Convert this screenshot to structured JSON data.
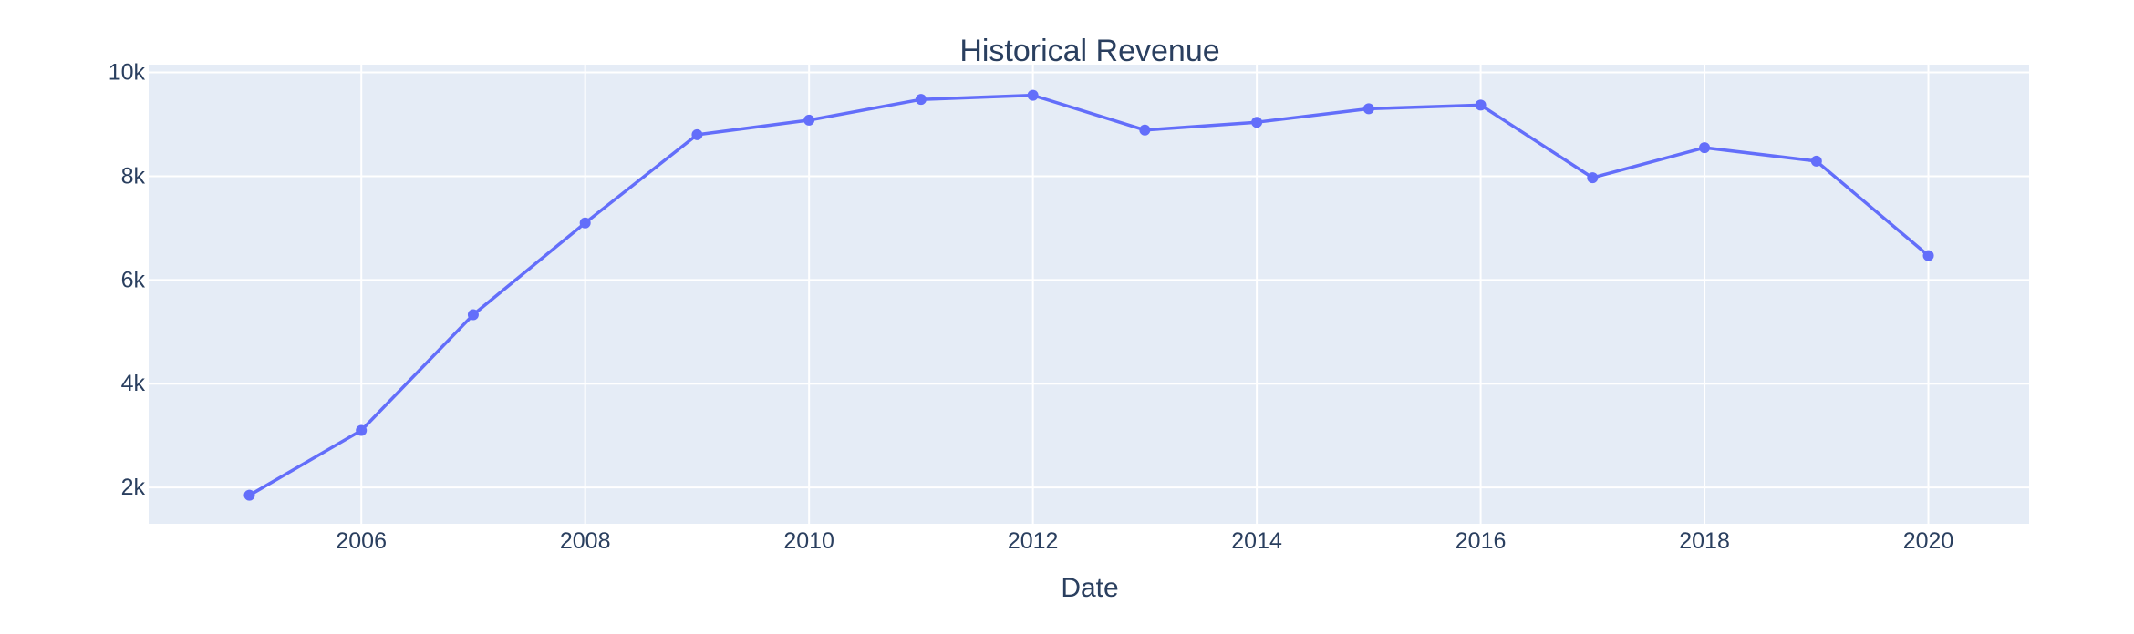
{
  "chart_data": {
    "type": "line",
    "title": "Historical Revenue",
    "xlabel": "Date",
    "ylabel": "",
    "x": [
      2005,
      2006,
      2007,
      2008,
      2009,
      2010,
      2011,
      2012,
      2013,
      2014,
      2015,
      2016,
      2017,
      2018,
      2019,
      2020
    ],
    "series": [
      {
        "values": [
          1850,
          3100,
          5330,
          7100,
          8800,
          9080,
          9480,
          9560,
          8890,
          9040,
          9300,
          9370,
          7970,
          8550,
          8290,
          6470
        ]
      }
    ],
    "xlim": [
      2004.1,
      2020.9
    ],
    "ylim": [
      1300,
      10150
    ],
    "x_ticks": [
      "2006",
      "2008",
      "2010",
      "2012",
      "2014",
      "2016",
      "2018",
      "2020"
    ],
    "x_tick_values": [
      2006,
      2008,
      2010,
      2012,
      2014,
      2016,
      2018,
      2020
    ],
    "y_ticks": [
      "2k",
      "4k",
      "6k",
      "8k",
      "10k"
    ],
    "y_tick_values": [
      2000,
      4000,
      6000,
      8000,
      10000
    ],
    "grid": true,
    "legend": "none",
    "colors": {
      "line": "#636efa",
      "plot_bg": "#e5ecf6",
      "grid": "#ffffff",
      "text": "#2a3f5f"
    }
  }
}
